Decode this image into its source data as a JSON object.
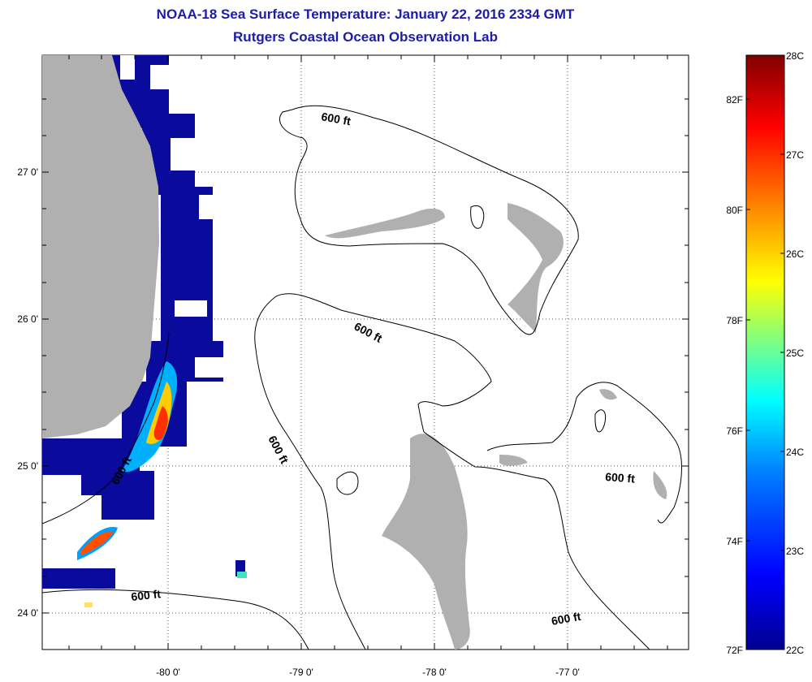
{
  "header": {
    "title": "NOAA-18 Sea Surface Temperature:  January 22, 2016 2334 GMT",
    "subtitle": "Rutgers Coastal Ocean Observation Lab"
  },
  "map": {
    "lon_labels": [
      "-80 0'",
      "-79 0'",
      "-78 0'",
      "-77 0'"
    ],
    "lat_labels": [
      "27 0'",
      "26 0'",
      "25 0'",
      "24 0'"
    ],
    "contour_labels": [
      "600 ft",
      "600 ft",
      "600 ft",
      "600 ft",
      "600 ft",
      "600 ft",
      "600 ft"
    ]
  },
  "colorbar": {
    "celsius_labels": [
      "28C",
      "27C",
      "26C",
      "25C",
      "24C",
      "23C",
      "22C"
    ],
    "fahrenheit_labels": [
      "82F",
      "80F",
      "78F",
      "76F",
      "74F",
      "72F"
    ],
    "colors": [
      "#00008f",
      "#0000ff",
      "#0080ff",
      "#00ffff",
      "#80ff80",
      "#ffff00",
      "#ff8000",
      "#ff0000",
      "#800000"
    ]
  },
  "colors": {
    "land": "#b0b0b0",
    "cold_water": "#0a0a9c",
    "title": "#1c1ca8"
  }
}
